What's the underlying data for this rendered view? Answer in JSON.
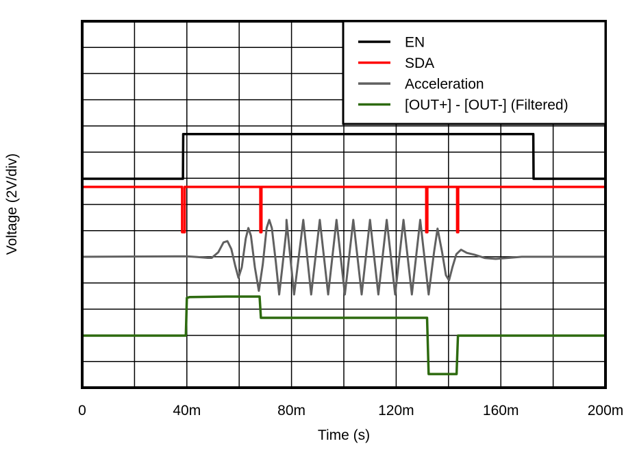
{
  "chart_data": {
    "type": "line",
    "title": "",
    "xlabel": "Time (s)",
    "ylabel": "Voltage (2V/div)",
    "xlim": [
      0,
      0.2
    ],
    "ylim_div": [
      0,
      14
    ],
    "volts_per_div": 2,
    "grid": true,
    "x_ticks": [
      {
        "value": 0,
        "label": "0"
      },
      {
        "value": 0.04,
        "label": "40m"
      },
      {
        "value": 0.08,
        "label": "80m"
      },
      {
        "value": 0.12,
        "label": "120m"
      },
      {
        "value": 0.16,
        "label": "160m"
      },
      {
        "value": 0.2,
        "label": "200m"
      }
    ],
    "x_minor_grid_divisions": 10,
    "y_grid_divisions": 14,
    "legend_position": "upper right",
    "series": [
      {
        "name": "EN",
        "color": "#000000",
        "points_ms_div": [
          [
            0,
            7.98
          ],
          [
            38.5,
            7.98
          ],
          [
            38.6,
            9.69
          ],
          [
            172.4,
            9.69
          ],
          [
            172.5,
            7.98
          ],
          [
            200,
            7.98
          ]
        ]
      },
      {
        "name": "SDA",
        "color": "#ff0000",
        "baseline_div": 7.67,
        "pulse_low_div": 5.94,
        "pulses_ms": [
          38.3,
          38.9,
          68.3,
          131.7,
          143.5
        ],
        "points_ms_div": [
          [
            0,
            7.67
          ],
          [
            38.2,
            7.67
          ],
          [
            38.2,
            5.94
          ],
          [
            39.2,
            5.94
          ],
          [
            39.2,
            7.67
          ],
          [
            68.1,
            7.67
          ],
          [
            68.1,
            5.94
          ],
          [
            68.5,
            5.94
          ],
          [
            68.5,
            7.67
          ],
          [
            131.5,
            7.67
          ],
          [
            131.5,
            5.94
          ],
          [
            131.9,
            5.94
          ],
          [
            131.9,
            7.67
          ],
          [
            143.3,
            7.67
          ],
          [
            143.3,
            5.94
          ],
          [
            143.7,
            5.94
          ],
          [
            143.7,
            7.67
          ],
          [
            200,
            7.67
          ]
        ]
      },
      {
        "name": "Acceleration",
        "color": "#606060",
        "baseline_div": 5.0,
        "oscillation": {
          "start_ms": 60,
          "end_ms": 137,
          "period_ms": 6.4,
          "peak_div": 6.41,
          "trough_div": 3.56
        },
        "points_ms_div": [
          [
            0,
            5.0
          ],
          [
            40,
            5.02
          ],
          [
            44,
            4.99
          ],
          [
            48,
            4.96
          ],
          [
            49.5,
            4.96
          ],
          [
            52,
            5.17
          ],
          [
            54,
            5.55
          ],
          [
            55.5,
            5.6
          ],
          [
            57,
            5.3
          ],
          [
            58.5,
            4.65
          ],
          [
            59.7,
            4.2
          ],
          [
            61,
            4.6
          ],
          [
            62.5,
            5.7
          ],
          [
            63.5,
            6.1
          ],
          [
            64.5,
            5.8
          ],
          [
            66,
            4.6
          ],
          [
            67.5,
            3.7
          ],
          [
            69,
            4.7
          ],
          [
            70.5,
            6.1
          ],
          [
            71.5,
            6.41
          ],
          [
            72.5,
            6.1
          ],
          [
            74,
            4.8
          ],
          [
            75.3,
            3.56
          ],
          [
            76.5,
            4.6
          ],
          [
            78,
            6.0
          ],
          [
            78.1,
            6.41
          ],
          [
            81,
            3.56
          ],
          [
            84.5,
            6.41
          ],
          [
            87.5,
            3.56
          ],
          [
            90.8,
            6.41
          ],
          [
            94,
            3.56
          ],
          [
            97.2,
            6.41
          ],
          [
            100.4,
            3.56
          ],
          [
            103.6,
            6.41
          ],
          [
            106.8,
            3.56
          ],
          [
            110,
            6.41
          ],
          [
            113.2,
            3.56
          ],
          [
            116.4,
            6.41
          ],
          [
            119.6,
            3.56
          ],
          [
            122.8,
            6.41
          ],
          [
            126,
            3.56
          ],
          [
            129.2,
            6.41
          ],
          [
            132.4,
            3.56
          ],
          [
            134.5,
            5.2
          ],
          [
            135.8,
            6.08
          ],
          [
            137.5,
            5.2
          ],
          [
            139,
            4.3
          ],
          [
            140.2,
            4.1
          ],
          [
            141.5,
            4.6
          ],
          [
            143,
            5.1
          ],
          [
            144.8,
            5.27
          ],
          [
            147,
            5.15
          ],
          [
            150,
            5.08
          ],
          [
            154,
            4.95
          ],
          [
            158,
            4.92
          ],
          [
            163,
            4.96
          ],
          [
            168,
            5.0
          ],
          [
            200,
            5.0
          ]
        ]
      },
      {
        "name": "[OUT+] - [OUT-] (Filtered)",
        "color": "#2d6a0f",
        "points_ms_div": [
          [
            0,
            1.99
          ],
          [
            39.6,
            1.99
          ],
          [
            40.0,
            3.43
          ],
          [
            41,
            3.46
          ],
          [
            55,
            3.48
          ],
          [
            67.8,
            3.48
          ],
          [
            68.3,
            2.67
          ],
          [
            131.8,
            2.67
          ],
          [
            132.4,
            0.52
          ],
          [
            143.1,
            0.52
          ],
          [
            143.6,
            1.99
          ],
          [
            200,
            1.99
          ]
        ]
      }
    ]
  }
}
